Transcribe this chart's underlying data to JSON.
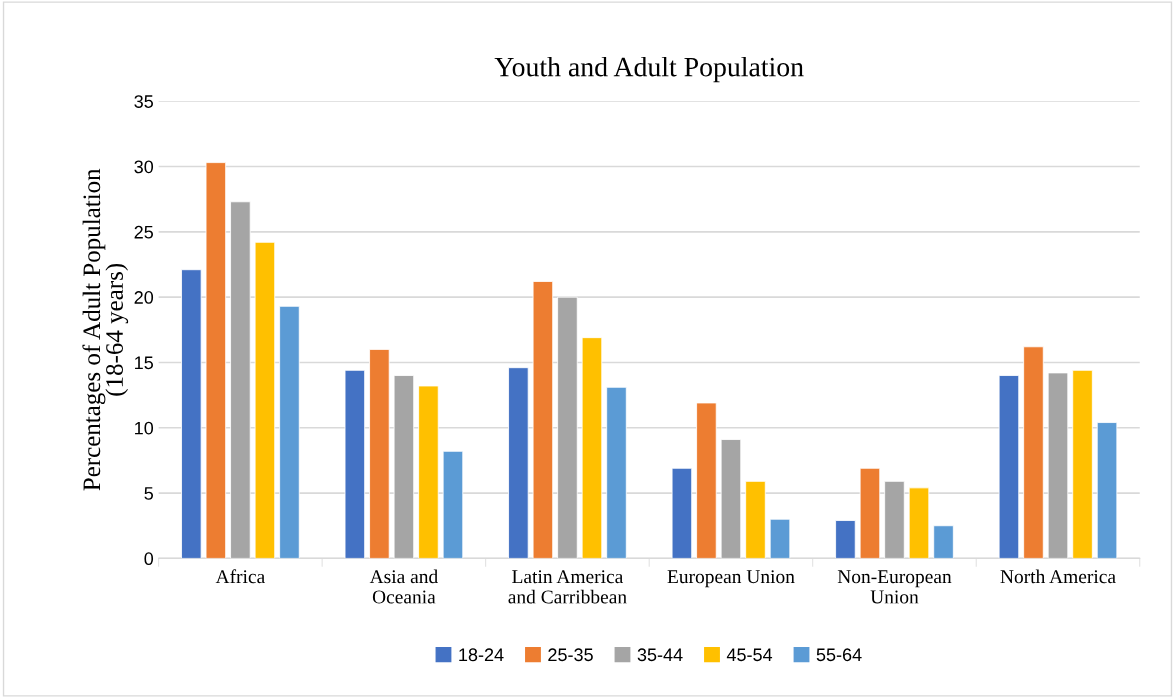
{
  "chart_data": {
    "type": "bar",
    "title": "Youth and Adult Population",
    "ylabel": "Percentages of Adult Population\n(18-64 years)",
    "categories": [
      "Africa",
      "Asia and Oceania",
      "Latin America and Carribbean",
      "European Union",
      "Non-European Union",
      "North America"
    ],
    "series": [
      {
        "name": "18-24",
        "color": "#4472c4",
        "values": [
          22.1,
          14.4,
          14.6,
          6.9,
          2.9,
          14.0
        ]
      },
      {
        "name": "25-35",
        "color": "#ed7d31",
        "values": [
          30.3,
          16.0,
          21.2,
          11.9,
          6.9,
          16.2
        ]
      },
      {
        "name": "35-44",
        "color": "#a5a5a5",
        "values": [
          27.3,
          14.0,
          20.0,
          9.1,
          5.9,
          14.2
        ]
      },
      {
        "name": "45-54",
        "color": "#ffc000",
        "values": [
          24.2,
          13.2,
          16.9,
          5.9,
          5.4,
          14.4
        ]
      },
      {
        "name": "55-64",
        "color": "#5b9bd5",
        "values": [
          19.3,
          8.2,
          13.1,
          3.0,
          2.5,
          10.4
        ]
      }
    ],
    "ylim": [
      0,
      35
    ],
    "yticks": [
      0,
      5,
      10,
      15,
      20,
      25,
      30,
      35
    ],
    "grid": "y",
    "legend": "bottom"
  }
}
